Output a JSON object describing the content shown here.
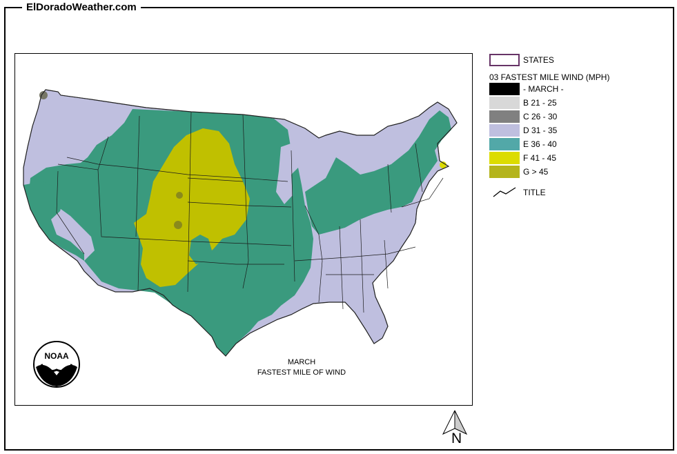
{
  "site": {
    "title": "ElDoradoWeather.com"
  },
  "map": {
    "caption_line1": "MARCH",
    "caption_line2": "FASTEST MILE OF WIND",
    "logo_text": "NOAA"
  },
  "legend": {
    "states_label": "STATES",
    "heading": "03 FASTEST MILE WIND (MPH)",
    "items": [
      {
        "label": "- MARCH -",
        "color": "#000000"
      },
      {
        "label": "B 21 - 25",
        "color": "#d8d8d8"
      },
      {
        "label": "C 26 - 30",
        "color": "#808080"
      },
      {
        "label": "D 31 - 35",
        "color": "#bfbfdf"
      },
      {
        "label": "E 36 - 40",
        "color": "#52a8a8"
      },
      {
        "label": "F 41 - 45",
        "color": "#dcdc00"
      },
      {
        "label": "G > 45",
        "color": "#b4b41c"
      }
    ],
    "title_label": "TITLE"
  },
  "colors": {
    "zone_d": "#bfbfdf",
    "zone_e": "#3a9a7e",
    "zone_g": "#c0c000",
    "state_line": "#1a1a1a"
  },
  "compass": {
    "letter": "N"
  }
}
